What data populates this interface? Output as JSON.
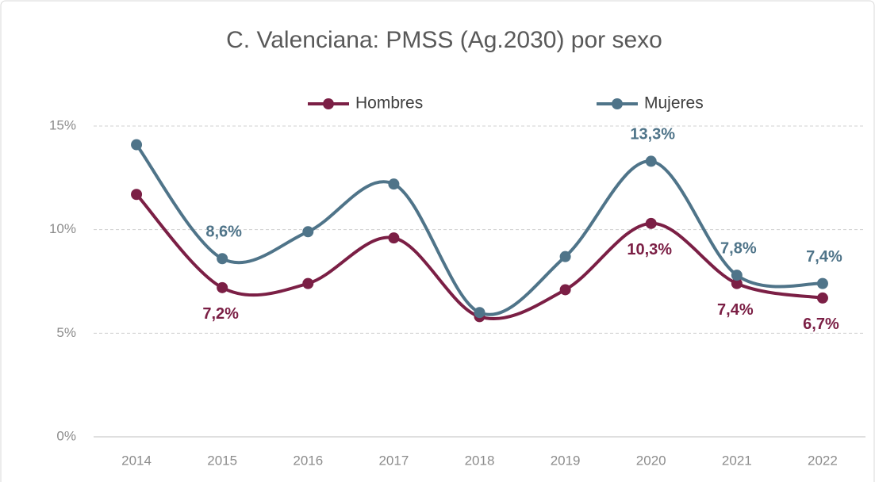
{
  "chart_data": {
    "type": "line",
    "title": "C. Valenciana: PMSS (Ag.2030) por sexo",
    "categories": [
      "2014",
      "2015",
      "2016",
      "2017",
      "2018",
      "2019",
      "2020",
      "2021",
      "2022"
    ],
    "series": [
      {
        "name": "Hombres",
        "color": "#7b1f45",
        "values": [
          11.7,
          7.2,
          7.4,
          9.6,
          5.8,
          7.1,
          10.3,
          7.4,
          6.7
        ],
        "value_labels": [
          null,
          "7,2%",
          null,
          null,
          null,
          null,
          "10,3%",
          "7,4%",
          "6,7%"
        ]
      },
      {
        "name": "Mujeres",
        "color": "#4f7489",
        "values": [
          14.1,
          8.6,
          9.9,
          12.2,
          6.0,
          8.7,
          13.3,
          7.8,
          7.4
        ],
        "value_labels": [
          null,
          "8,6%",
          null,
          null,
          null,
          null,
          "13,3%",
          "7,8%",
          "7,4%"
        ]
      }
    ],
    "ylim": [
      0,
      15
    ],
    "yticks": [
      {
        "value": 0,
        "label": "0%"
      },
      {
        "value": 5,
        "label": "5%"
      },
      {
        "value": 10,
        "label": "10%"
      },
      {
        "value": 15,
        "label": "15%"
      }
    ],
    "grid": true,
    "legend": "top"
  }
}
